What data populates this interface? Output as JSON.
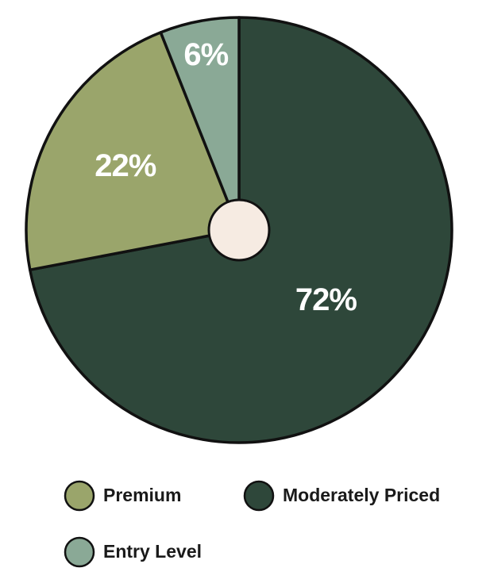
{
  "chart_data": {
    "type": "pie",
    "categories": [
      "Moderately Priced",
      "Premium",
      "Entry Level"
    ],
    "values": [
      72,
      22,
      6
    ],
    "value_labels": [
      "72%",
      "22%",
      "6%"
    ],
    "colors": [
      "#2e473a",
      "#9aa56b",
      "#8aa996"
    ],
    "legend": "bottom"
  }
}
